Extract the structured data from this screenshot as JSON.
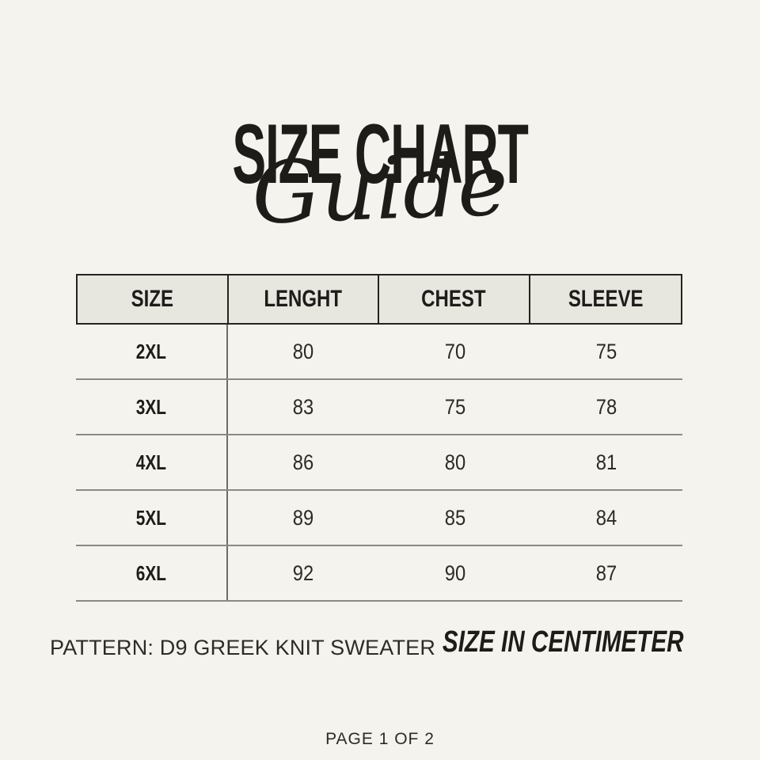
{
  "header": {
    "title": "SIZE CHART",
    "subtitle": "Guide"
  },
  "table": {
    "headers": [
      "SIZE",
      "LENGHT",
      "CHEST",
      "SLEEVE"
    ],
    "rows": [
      {
        "size": "2XL",
        "values": [
          "80",
          "70",
          "75"
        ]
      },
      {
        "size": "3XL",
        "values": [
          "83",
          "75",
          "78"
        ]
      },
      {
        "size": "4XL",
        "values": [
          "86",
          "80",
          "81"
        ]
      },
      {
        "size": "5XL",
        "values": [
          "89",
          "85",
          "84"
        ]
      },
      {
        "size": "6XL",
        "values": [
          "92",
          "90",
          "87"
        ]
      }
    ]
  },
  "footer": {
    "pattern_note": "PATTERN: D9 GREEK KNIT SWEATER",
    "unit_note": "SIZE IN CENTIMETER",
    "page_indicator": "PAGE 1 OF 2"
  },
  "colors": {
    "background": "#f5f3ee",
    "header_fill": "#e7e6df",
    "border_dark": "#26241f",
    "row_line": "#8b8982",
    "text": "#1e1c19"
  }
}
